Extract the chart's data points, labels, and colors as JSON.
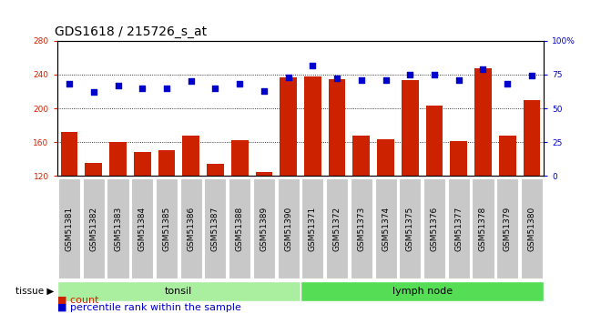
{
  "title": "GDS1618 / 215726_s_at",
  "samples": [
    "GSM51381",
    "GSM51382",
    "GSM51383",
    "GSM51384",
    "GSM51385",
    "GSM51386",
    "GSM51387",
    "GSM51388",
    "GSM51389",
    "GSM51390",
    "GSM51371",
    "GSM51372",
    "GSM51373",
    "GSM51374",
    "GSM51375",
    "GSM51376",
    "GSM51377",
    "GSM51378",
    "GSM51379",
    "GSM51380"
  ],
  "counts": [
    172,
    135,
    160,
    148,
    150,
    168,
    134,
    162,
    125,
    237,
    238,
    235,
    168,
    163,
    233,
    203,
    161,
    248,
    168,
    210
  ],
  "percentiles": [
    68,
    62,
    67,
    65,
    65,
    70,
    65,
    68,
    63,
    73,
    82,
    72,
    71,
    71,
    75,
    75,
    71,
    79,
    68,
    74
  ],
  "tonsil_count": 10,
  "lymph_count": 10,
  "ylim_left": [
    120,
    280
  ],
  "ylim_right": [
    0,
    100
  ],
  "yticks_left": [
    120,
    160,
    200,
    240,
    280
  ],
  "yticks_right": [
    0,
    25,
    50,
    75,
    100
  ],
  "bar_color": "#cc2200",
  "dot_color": "#0000cc",
  "tonsil_color": "#aaeea0",
  "lymph_color": "#55dd55",
  "tick_bg_color": "#c8c8c8",
  "plot_bg": "#ffffff",
  "title_fontsize": 10,
  "tick_fontsize": 6.5,
  "legend_fontsize": 8
}
